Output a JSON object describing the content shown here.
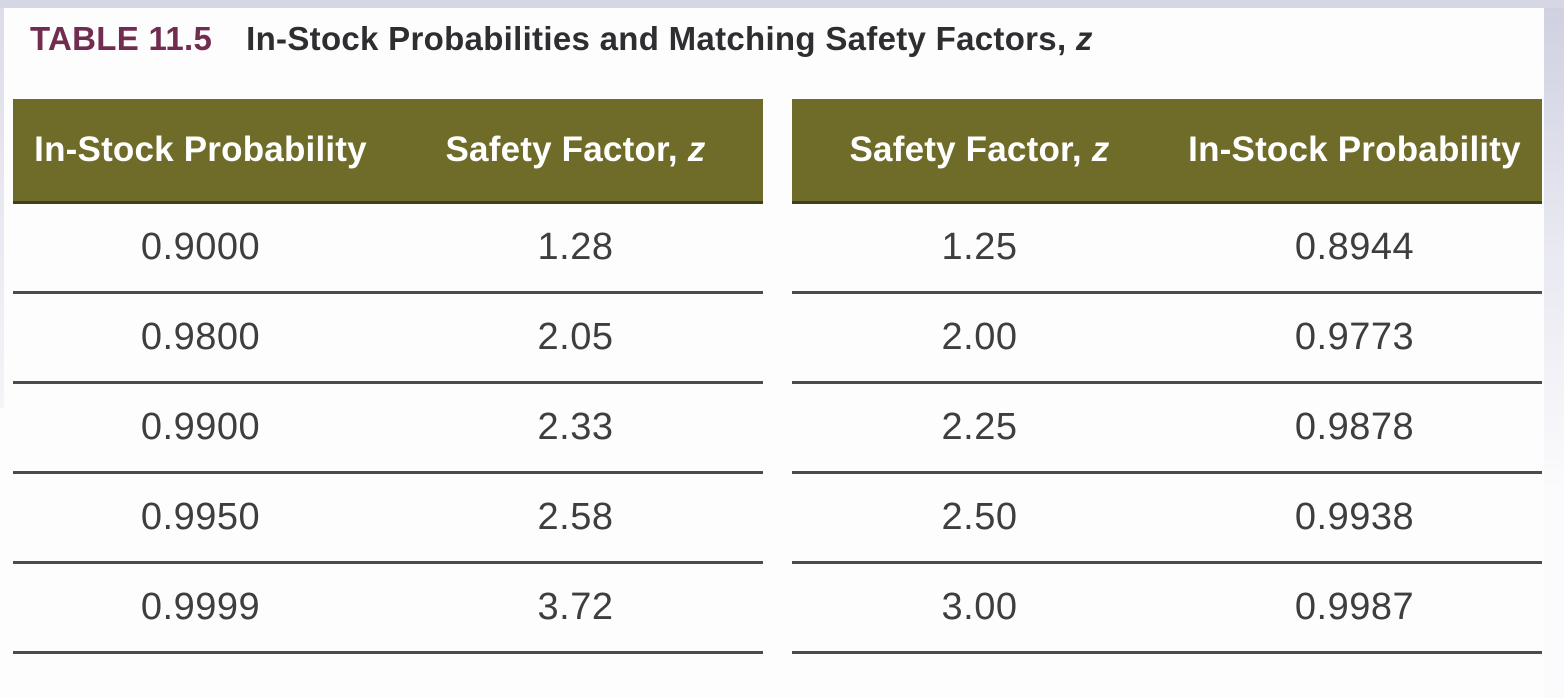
{
  "page": {
    "background": "#fdfdfe",
    "edge_tint": "#d6d7e5",
    "caption_label": "TABLE 11.5",
    "caption_label_color": "#722c50",
    "caption_text": "In-Stock Probabilities and Matching Safety Factors,",
    "caption_italic_suffix": "z"
  },
  "colors": {
    "header_background": "#6f6b28",
    "header_text": "#ffffff",
    "header_bottom_edge": "#433e1e",
    "row_divider": "#4b4b4b",
    "data_text": "#3e3e40"
  },
  "left_table": {
    "headers": [
      {
        "text": "In-Stock Probability",
        "italic_suffix": ""
      },
      {
        "text": "Safety Factor,",
        "italic_suffix": "z"
      }
    ],
    "rows": [
      [
        "0.9000",
        "1.28"
      ],
      [
        "0.9800",
        "2.05"
      ],
      [
        "0.9900",
        "2.33"
      ],
      [
        "0.9950",
        "2.58"
      ],
      [
        "0.9999",
        "3.72"
      ]
    ]
  },
  "right_table": {
    "headers": [
      {
        "text": "Safety Factor,",
        "italic_suffix": "z"
      },
      {
        "text": "In-Stock Probability",
        "italic_suffix": ""
      }
    ],
    "rows": [
      [
        "1.25",
        "0.8944"
      ],
      [
        "2.00",
        "0.9773"
      ],
      [
        "2.25",
        "0.9878"
      ],
      [
        "2.50",
        "0.9938"
      ],
      [
        "3.00",
        "0.9987"
      ]
    ]
  },
  "chart_data": [
    {
      "type": "table",
      "title": "TABLE 11.5  In-Stock Probabilities and Matching Safety Factors, z",
      "columns": [
        "In-Stock Probability",
        "Safety Factor, z"
      ],
      "rows": [
        [
          0.9,
          1.28
        ],
        [
          0.98,
          2.05
        ],
        [
          0.99,
          2.33
        ],
        [
          0.995,
          2.58
        ],
        [
          0.9999,
          3.72
        ]
      ]
    },
    {
      "type": "table",
      "title": "TABLE 11.5  In-Stock Probabilities and Matching Safety Factors, z",
      "columns": [
        "Safety Factor, z",
        "In-Stock Probability"
      ],
      "rows": [
        [
          1.25,
          0.8944
        ],
        [
          2.0,
          0.9773
        ],
        [
          2.25,
          0.9878
        ],
        [
          2.5,
          0.9938
        ],
        [
          3.0,
          0.9987
        ]
      ]
    }
  ]
}
